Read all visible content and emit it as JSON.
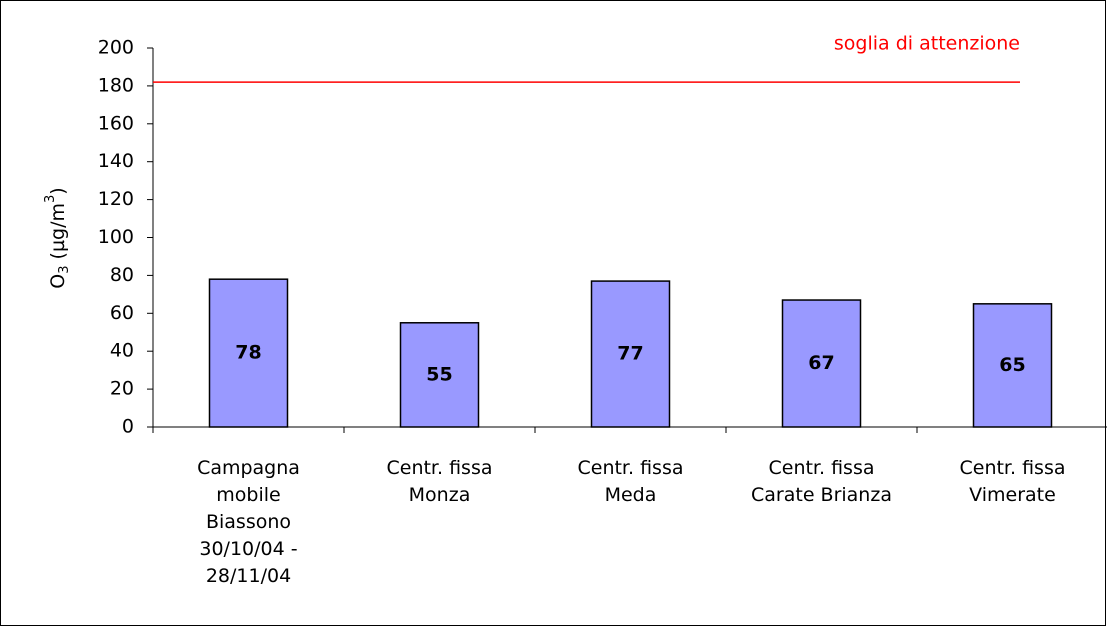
{
  "chart_data": {
    "type": "bar",
    "y_label": [
      "O",
      "3",
      " (µg/m",
      "3",
      ")"
    ],
    "categories": [
      [
        "Campagna",
        "mobile",
        "Biassono",
        "30/10/04 -",
        "28/11/04"
      ],
      [
        "Centr. fissa",
        "Monza"
      ],
      [
        "Centr. fissa",
        "Meda"
      ],
      [
        "Centr. fissa",
        "Carate Brianza"
      ],
      [
        "Centr. fissa",
        "Vimerate"
      ]
    ],
    "values": [
      78,
      55,
      77,
      67,
      65
    ],
    "color": "#9999ff",
    "ylim": [
      0,
      200
    ],
    "yticks": [
      0,
      20,
      40,
      60,
      80,
      100,
      120,
      140,
      160,
      180,
      200
    ],
    "threshold": {
      "label": "soglia di attenzione",
      "value": 182,
      "color": "#ff0000"
    }
  }
}
